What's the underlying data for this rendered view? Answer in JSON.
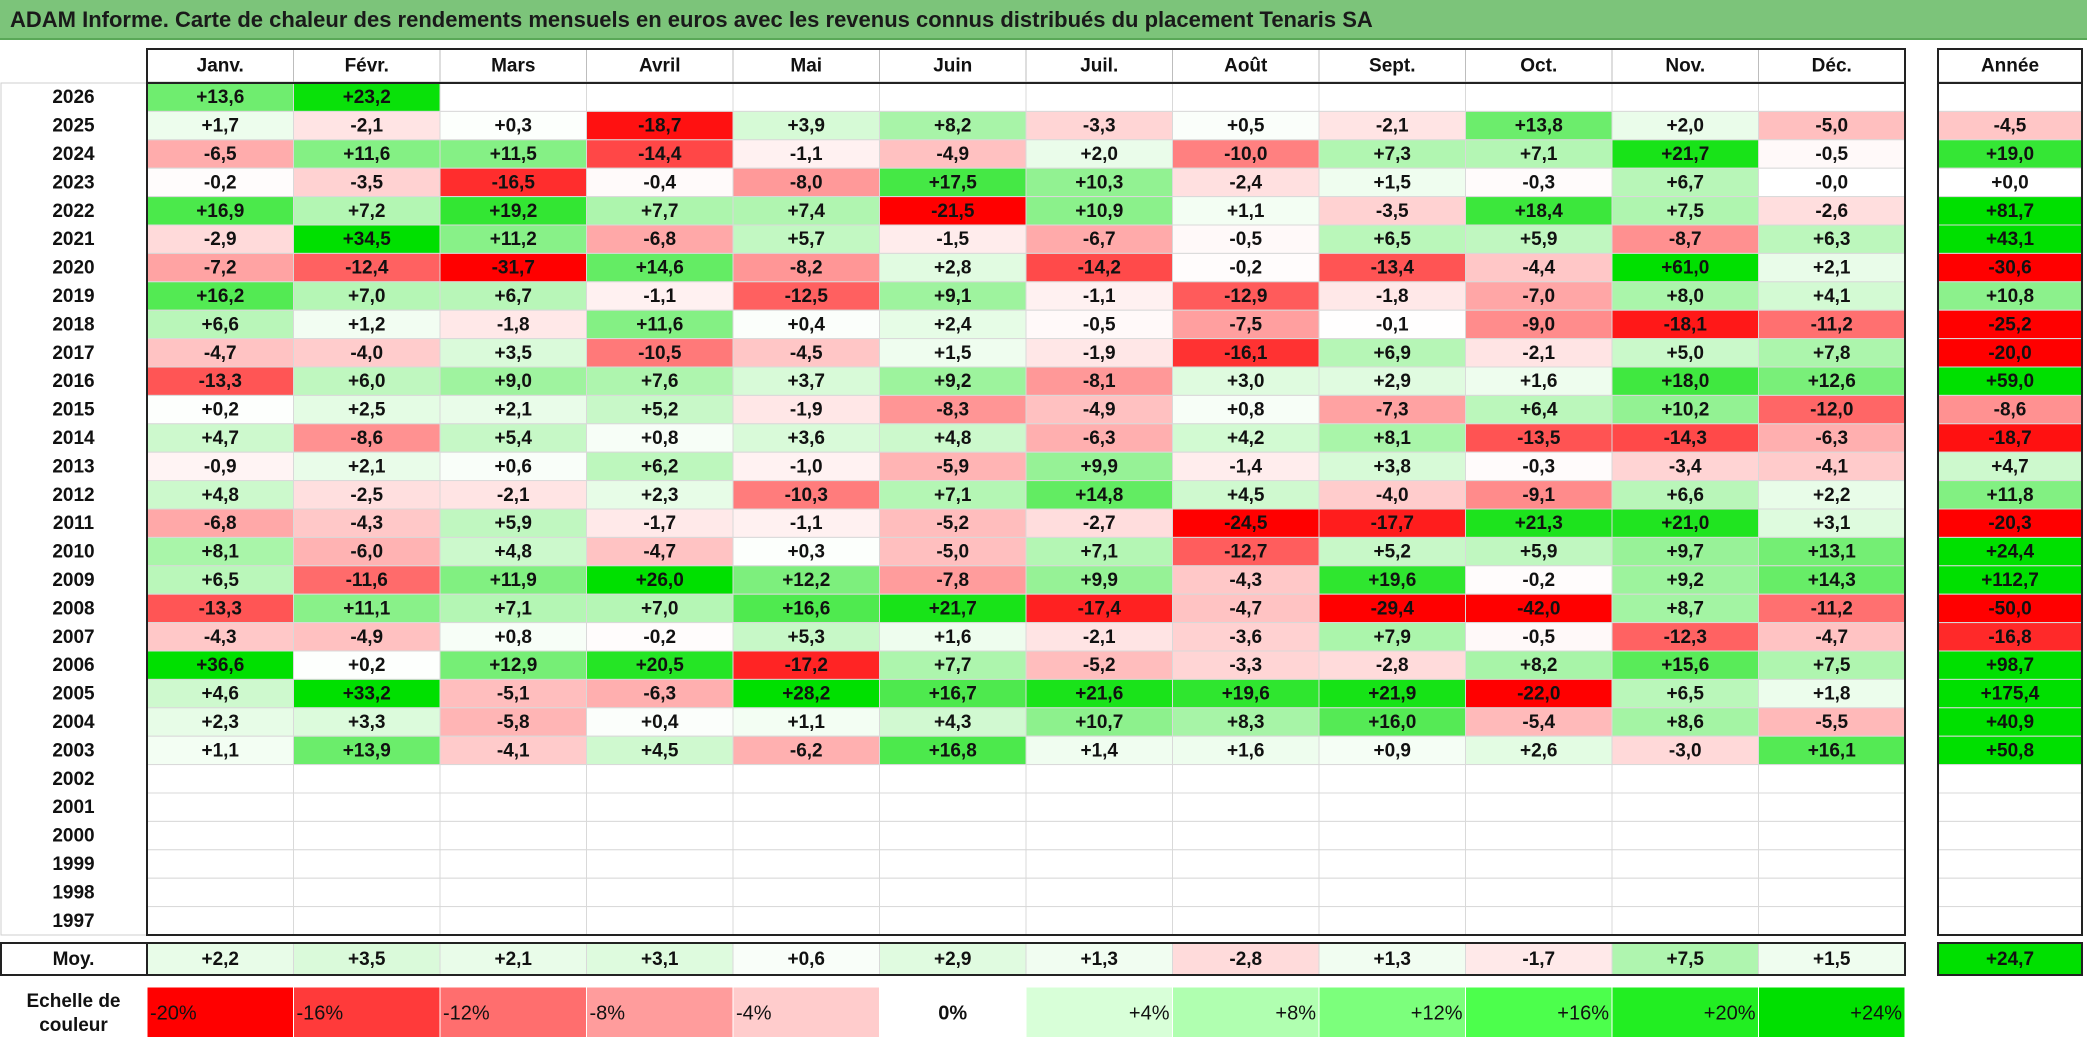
{
  "title": "ADAM Informe. Carte de chaleur des rendements mensuels en euros avec les revenus connus distribués du placement Tenaris SA",
  "chart_data": {
    "type": "heatmap",
    "title": "ADAM Informe. Carte de chaleur des rendements mensuels en euros avec les revenus connus distribués du placement Tenaris SA",
    "columns": [
      "Janv.",
      "Févr.",
      "Mars",
      "Avril",
      "Mai",
      "Juin",
      "Juil.",
      "Août",
      "Sept.",
      "Oct.",
      "Nov.",
      "Déc."
    ],
    "year_header": "Année",
    "rows": [
      {
        "year": "2026",
        "values": [
          "+13,6",
          "+23,2",
          "",
          "",
          "",
          "",
          "",
          "",
          "",
          "",
          "",
          ""
        ],
        "annual": ""
      },
      {
        "year": "2025",
        "values": [
          "+1,7",
          "-2,1",
          "+0,3",
          "-18,7",
          "+3,9",
          "+8,2",
          "-3,3",
          "+0,5",
          "-2,1",
          "+13,8",
          "+2,0",
          "-5,0"
        ],
        "annual": "-4,5"
      },
      {
        "year": "2024",
        "values": [
          "-6,5",
          "+11,6",
          "+11,5",
          "-14,4",
          "-1,1",
          "-4,9",
          "+2,0",
          "-10,0",
          "+7,3",
          "+7,1",
          "+21,7",
          "-0,5"
        ],
        "annual": "+19,0"
      },
      {
        "year": "2023",
        "values": [
          "-0,2",
          "-3,5",
          "-16,5",
          "-0,4",
          "-8,0",
          "+17,5",
          "+10,3",
          "-2,4",
          "+1,5",
          "-0,3",
          "+6,7",
          "-0,0"
        ],
        "annual": "+0,0"
      },
      {
        "year": "2022",
        "values": [
          "+16,9",
          "+7,2",
          "+19,2",
          "+7,7",
          "+7,4",
          "-21,5",
          "+10,9",
          "+1,1",
          "-3,5",
          "+18,4",
          "+7,5",
          "-2,6"
        ],
        "annual": "+81,7"
      },
      {
        "year": "2021",
        "values": [
          "-2,9",
          "+34,5",
          "+11,2",
          "-6,8",
          "+5,7",
          "-1,5",
          "-6,7",
          "-0,5",
          "+6,5",
          "+5,9",
          "-8,7",
          "+6,3"
        ],
        "annual": "+43,1"
      },
      {
        "year": "2020",
        "values": [
          "-7,2",
          "-12,4",
          "-31,7",
          "+14,6",
          "-8,2",
          "+2,8",
          "-14,2",
          "-0,2",
          "-13,4",
          "-4,4",
          "+61,0",
          "+2,1"
        ],
        "annual": "-30,6"
      },
      {
        "year": "2019",
        "values": [
          "+16,2",
          "+7,0",
          "+6,7",
          "-1,1",
          "-12,5",
          "+9,1",
          "-1,1",
          "-12,9",
          "-1,8",
          "-7,0",
          "+8,0",
          "+4,1"
        ],
        "annual": "+10,8"
      },
      {
        "year": "2018",
        "values": [
          "+6,6",
          "+1,2",
          "-1,8",
          "+11,6",
          "+0,4",
          "+2,4",
          "-0,5",
          "-7,5",
          "-0,1",
          "-9,0",
          "-18,1",
          "-11,2"
        ],
        "annual": "-25,2"
      },
      {
        "year": "2017",
        "values": [
          "-4,7",
          "-4,0",
          "+3,5",
          "-10,5",
          "-4,5",
          "+1,5",
          "-1,9",
          "-16,1",
          "+6,9",
          "-2,1",
          "+5,0",
          "+7,8"
        ],
        "annual": "-20,0"
      },
      {
        "year": "2016",
        "values": [
          "-13,3",
          "+6,0",
          "+9,0",
          "+7,6",
          "+3,7",
          "+9,2",
          "-8,1",
          "+3,0",
          "+2,9",
          "+1,6",
          "+18,0",
          "+12,6"
        ],
        "annual": "+59,0"
      },
      {
        "year": "2015",
        "values": [
          "+0,2",
          "+2,5",
          "+2,1",
          "+5,2",
          "-1,9",
          "-8,3",
          "-4,9",
          "+0,8",
          "-7,3",
          "+6,4",
          "+10,2",
          "-12,0"
        ],
        "annual": "-8,6"
      },
      {
        "year": "2014",
        "values": [
          "+4,7",
          "-8,6",
          "+5,4",
          "+0,8",
          "+3,6",
          "+4,8",
          "-6,3",
          "+4,2",
          "+8,1",
          "-13,5",
          "-14,3",
          "-6,3"
        ],
        "annual": "-18,7"
      },
      {
        "year": "2013",
        "values": [
          "-0,9",
          "+2,1",
          "+0,6",
          "+6,2",
          "-1,0",
          "-5,9",
          "+9,9",
          "-1,4",
          "+3,8",
          "-0,3",
          "-3,4",
          "-4,1"
        ],
        "annual": "+4,7"
      },
      {
        "year": "2012",
        "values": [
          "+4,8",
          "-2,5",
          "-2,1",
          "+2,3",
          "-10,3",
          "+7,1",
          "+14,8",
          "+4,5",
          "-4,0",
          "-9,1",
          "+6,6",
          "+2,2"
        ],
        "annual": "+11,8"
      },
      {
        "year": "2011",
        "values": [
          "-6,8",
          "-4,3",
          "+5,9",
          "-1,7",
          "-1,1",
          "-5,2",
          "-2,7",
          "-24,5",
          "-17,7",
          "+21,3",
          "+21,0",
          "+3,1"
        ],
        "annual": "-20,3"
      },
      {
        "year": "2010",
        "values": [
          "+8,1",
          "-6,0",
          "+4,8",
          "-4,7",
          "+0,3",
          "-5,0",
          "+7,1",
          "-12,7",
          "+5,2",
          "+5,9",
          "+9,7",
          "+13,1"
        ],
        "annual": "+24,4"
      },
      {
        "year": "2009",
        "values": [
          "+6,5",
          "-11,6",
          "+11,9",
          "+26,0",
          "+12,2",
          "-7,8",
          "+9,9",
          "-4,3",
          "+19,6",
          "-0,2",
          "+9,2",
          "+14,3"
        ],
        "annual": "+112,7"
      },
      {
        "year": "2008",
        "values": [
          "-13,3",
          "+11,1",
          "+7,1",
          "+7,0",
          "+16,6",
          "+21,7",
          "-17,4",
          "-4,7",
          "-29,4",
          "-42,0",
          "+8,7",
          "-11,2"
        ],
        "annual": "-50,0"
      },
      {
        "year": "2007",
        "values": [
          "-4,3",
          "-4,9",
          "+0,8",
          "-0,2",
          "+5,3",
          "+1,6",
          "-2,1",
          "-3,6",
          "+7,9",
          "-0,5",
          "-12,3",
          "-4,7"
        ],
        "annual": "-16,8"
      },
      {
        "year": "2006",
        "values": [
          "+36,6",
          "+0,2",
          "+12,9",
          "+20,5",
          "-17,2",
          "+7,7",
          "-5,2",
          "-3,3",
          "-2,8",
          "+8,2",
          "+15,6",
          "+7,5"
        ],
        "annual": "+98,7"
      },
      {
        "year": "2005",
        "values": [
          "+4,6",
          "+33,2",
          "-5,1",
          "-6,3",
          "+28,2",
          "+16,7",
          "+21,6",
          "+19,6",
          "+21,9",
          "-22,0",
          "+6,5",
          "+1,8"
        ],
        "annual": "+175,4"
      },
      {
        "year": "2004",
        "values": [
          "+2,3",
          "+3,3",
          "-5,8",
          "+0,4",
          "+1,1",
          "+4,3",
          "+10,7",
          "+8,3",
          "+16,0",
          "-5,4",
          "+8,6",
          "-5,5"
        ],
        "annual": "+40,9"
      },
      {
        "year": "2003",
        "values": [
          "+1,1",
          "+13,9",
          "-4,1",
          "+4,5",
          "-6,2",
          "+16,8",
          "+1,4",
          "+1,6",
          "+0,9",
          "+2,6",
          "-3,0",
          "+16,1"
        ],
        "annual": "+50,8"
      },
      {
        "year": "2002",
        "values": [
          "",
          "",
          "",
          "",
          "",
          "",
          "",
          "",
          "",
          "",
          "",
          ""
        ],
        "annual": ""
      },
      {
        "year": "2001",
        "values": [
          "",
          "",
          "",
          "",
          "",
          "",
          "",
          "",
          "",
          "",
          "",
          ""
        ],
        "annual": ""
      },
      {
        "year": "2000",
        "values": [
          "",
          "",
          "",
          "",
          "",
          "",
          "",
          "",
          "",
          "",
          "",
          ""
        ],
        "annual": ""
      },
      {
        "year": "1999",
        "values": [
          "",
          "",
          "",
          "",
          "",
          "",
          "",
          "",
          "",
          "",
          "",
          ""
        ],
        "annual": ""
      },
      {
        "year": "1998",
        "values": [
          "",
          "",
          "",
          "",
          "",
          "",
          "",
          "",
          "",
          "",
          "",
          ""
        ],
        "annual": ""
      },
      {
        "year": "1997",
        "values": [
          "",
          "",
          "",
          "",
          "",
          "",
          "",
          "",
          "",
          "",
          "",
          ""
        ],
        "annual": ""
      }
    ],
    "average": {
      "label": "Moy.",
      "values": [
        "+2,2",
        "+3,5",
        "+2,1",
        "+3,1",
        "+0,6",
        "+2,9",
        "+1,3",
        "-2,8",
        "+1,3",
        "-1,7",
        "+7,5",
        "+1,5"
      ],
      "annual": "+24,7"
    },
    "scale": {
      "label_line1": "Echelle de",
      "label_line2": "couleur",
      "labels": [
        "-20%",
        "-16%",
        "-12%",
        "-8%",
        "-4%",
        "0%",
        "+4%",
        "+8%",
        "+12%",
        "+16%",
        "+20%",
        "+24%"
      ],
      "values": [
        -20,
        -16,
        -12,
        -8,
        -4,
        0,
        4,
        8,
        12,
        16,
        20,
        24
      ]
    },
    "colors": {
      "title_bar": "#7cc47a",
      "scale": [
        "#ff0000",
        "#ff3a3a",
        "#ff6e6e",
        "#ff9c9c",
        "#ffcccc",
        "#ffffff",
        "#d8ffd8",
        "#b0ffb0",
        "#7cff7c",
        "#4cff4c",
        "#22ee22",
        "#00e000"
      ]
    }
  }
}
